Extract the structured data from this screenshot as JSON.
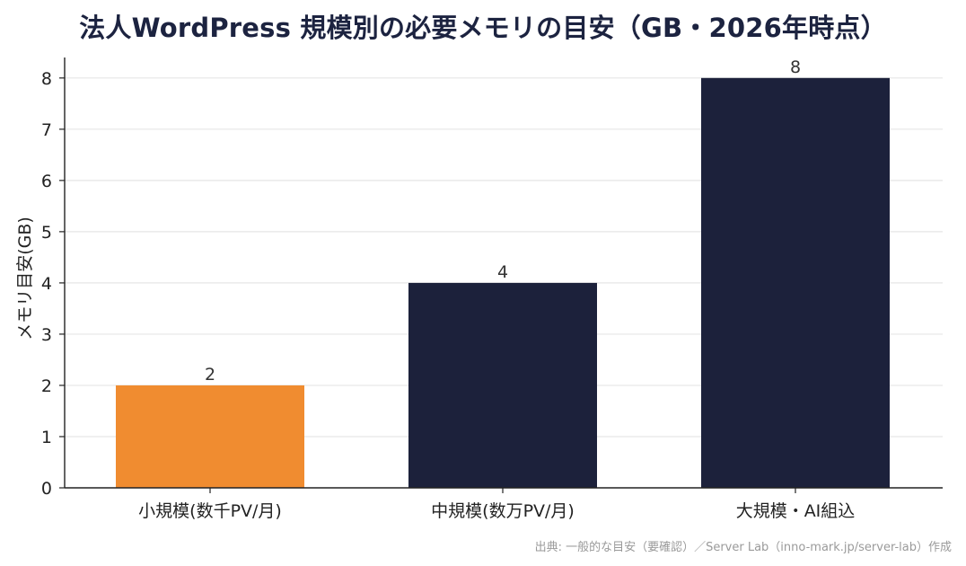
{
  "chart_data": {
    "type": "bar",
    "title": "法人WordPress 規模別の必要メモリの目安（GB・2026年時点）",
    "xlabel": "",
    "ylabel": "メモリ目安(GB)",
    "categories": [
      "小規模(数千PV/月)",
      "中規模(数万PV/月)",
      "大規模・AI組込"
    ],
    "values": [
      2,
      4,
      8
    ],
    "bar_colors": [
      "#f08c30",
      "#1c213b",
      "#1c213b"
    ],
    "ylim": [
      0,
      8.4
    ],
    "yticks": [
      0,
      1,
      2,
      3,
      4,
      5,
      6,
      7,
      8
    ],
    "grid": true,
    "legend": "none"
  },
  "source_note": "出典: 一般的な目安（要確認）／Server Lab（inno-mark.jp/server-lab）作成",
  "colors": {
    "title": "#1c2340",
    "grid": "#e6e6e6",
    "axis": "#222222"
  }
}
